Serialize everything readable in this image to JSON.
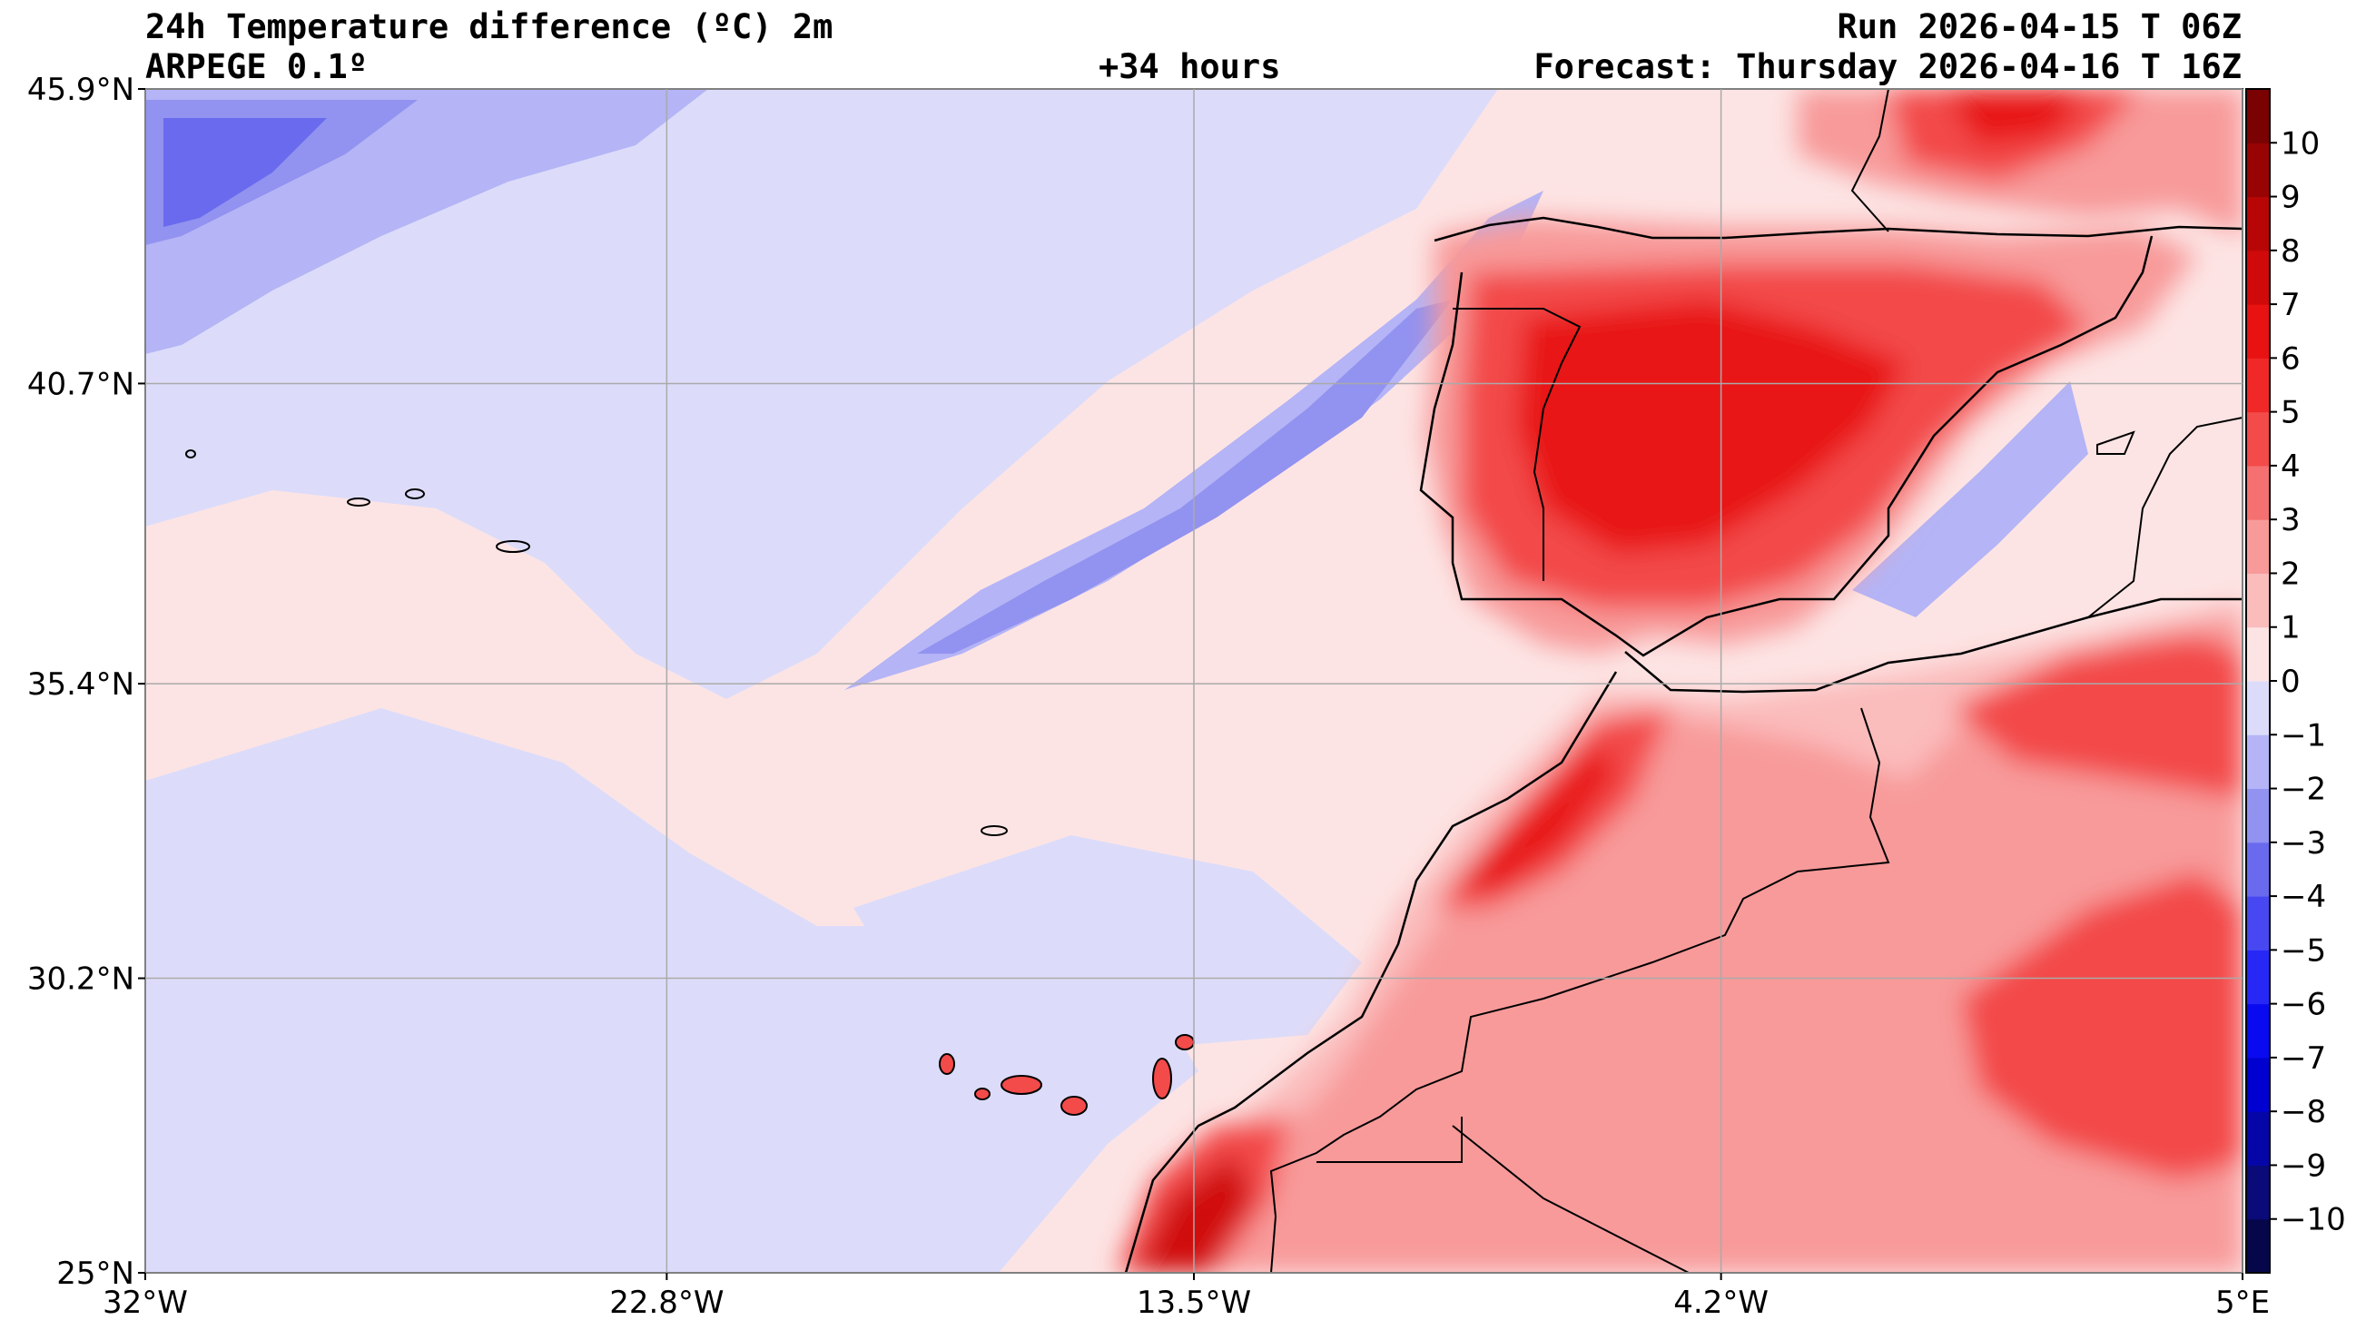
{
  "header": {
    "title": "24h Temperature difference (ºC) 2m",
    "model": "ARPEGE 0.1º",
    "lead": "+34 hours",
    "run": "Run 2026-04-15 T 06Z",
    "forecast": "Forecast: Thursday 2026-04-16 T 16Z"
  },
  "chart_data": {
    "type": "heatmap",
    "title": "24h Temperature difference (ºC) 2m",
    "xlabel": "",
    "ylabel": "",
    "x_range_lon": [
      -32,
      5
    ],
    "y_range_lat": [
      25,
      45.9
    ],
    "x_ticks": [
      {
        "value": -32,
        "label": "32°W"
      },
      {
        "value": -22.8,
        "label": "22.8°W"
      },
      {
        "value": -13.5,
        "label": "13.5°W"
      },
      {
        "value": -4.2,
        "label": "4.2°W"
      },
      {
        "value": 5,
        "label": "5°E"
      }
    ],
    "y_ticks": [
      {
        "value": 45.9,
        "label": "45.9°N"
      },
      {
        "value": 40.7,
        "label": "40.7°N"
      },
      {
        "value": 35.4,
        "label": "35.4°N"
      },
      {
        "value": 30.2,
        "label": "30.2°N"
      },
      {
        "value": 25,
        "label": "25°N"
      }
    ],
    "grid": true,
    "colorbar": {
      "min": -11,
      "max": 11,
      "levels": [
        -11,
        -10,
        -9,
        -8,
        -7,
        -6,
        -5,
        -4,
        -3,
        -2,
        -1,
        0,
        1,
        2,
        3,
        4,
        5,
        6,
        7,
        8,
        9,
        10,
        11
      ],
      "colors": [
        "#06064a",
        "#0a0a78",
        "#0606a8",
        "#0000d0",
        "#0a0af0",
        "#2828f6",
        "#4848f2",
        "#6a6aee",
        "#9292f0",
        "#b4b4f6",
        "#dcdcfa",
        "#fde4e4",
        "#fbbcbc",
        "#f89a9a",
        "#f57070",
        "#f34a4a",
        "#f02828",
        "#e81212",
        "#d00a0a",
        "#b80606",
        "#980404",
        "#7a0202"
      ],
      "tick_labels": [
        "−10",
        "−9",
        "−8",
        "−7",
        "−6",
        "−5",
        "−4",
        "−3",
        "−2",
        "−1",
        "0",
        "1",
        "2",
        "3",
        "4",
        "5",
        "6",
        "7",
        "8",
        "9",
        "10"
      ]
    }
  }
}
